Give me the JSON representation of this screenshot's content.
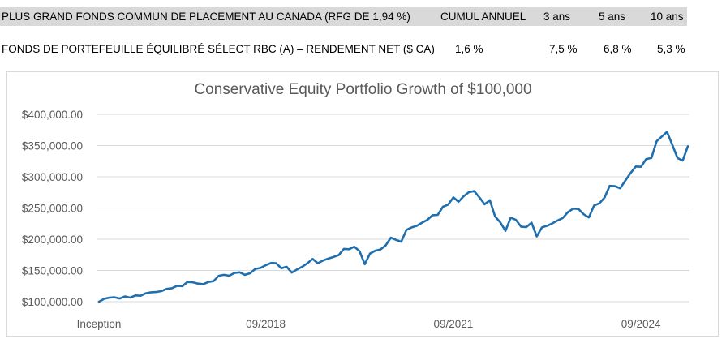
{
  "header": {
    "title": "PLUS GRAND FONDS COMMUN DE PLACEMENT AU CANADA (RFG DE 1,94 %)",
    "ytd_label": "CUMUL ANNUEL",
    "y3_label": "3 ans",
    "y5_label": "5 ans",
    "y10_label": "10 ans"
  },
  "fund": {
    "name": "FONDS DE PORTEFEUILLE ÉQUILIBRÉ SÉLECT RBC (A) – RENDEMENT NET ($ CA)",
    "ytd": "1,6 %",
    "y3": "7,5 %",
    "y5": "6,8 %",
    "y10": "5,3 %"
  },
  "chart_data": {
    "type": "line",
    "title": "Conservative Equity Portfolio Growth of $100,000",
    "xlabel": "",
    "ylabel": "",
    "ylim": [
      100000,
      400000
    ],
    "yticks": [
      "$100,000.00",
      "$150,000.00",
      "$200,000.00",
      "$250,000.00",
      "$300,000.00",
      "$350,000.00",
      "$400,000.00"
    ],
    "xticks": [
      {
        "index": 0,
        "label": "Inception"
      },
      {
        "index": 32,
        "label": "09/2018"
      },
      {
        "index": 68,
        "label": "09/2021"
      },
      {
        "index": 104,
        "label": "09/2024"
      }
    ],
    "grid": true,
    "color": "#1f6fae",
    "series": [
      {
        "values": [
          100000,
          104500,
          106500,
          107000,
          105000,
          108500,
          106500,
          110000,
          109500,
          113500,
          115000,
          115500,
          117000,
          120500,
          121500,
          125500,
          125000,
          131500,
          131000,
          129000,
          128000,
          131500,
          133000,
          141500,
          143000,
          141500,
          146000,
          147000,
          143000,
          145500,
          152500,
          154000,
          158500,
          162000,
          161500,
          153500,
          156000,
          146500,
          151500,
          156000,
          161500,
          168500,
          161500,
          166000,
          169000,
          171500,
          174500,
          184500,
          184000,
          188000,
          181000,
          160000,
          177000,
          181500,
          183500,
          190000,
          202500,
          199000,
          196000,
          215000,
          219000,
          221500,
          226500,
          231000,
          238500,
          239000,
          252000,
          255500,
          267000,
          260000,
          269000,
          275500,
          277000,
          267000,
          256000,
          262500,
          236500,
          227000,
          213500,
          234500,
          231000,
          220000,
          219500,
          226500,
          204500,
          219000,
          221500,
          225500,
          230000,
          234000,
          243500,
          249000,
          248500,
          240000,
          235000,
          254000,
          257500,
          266500,
          285500,
          285000,
          281500,
          294000,
          306000,
          316500,
          316000,
          328500,
          330000,
          357000,
          364500,
          372000,
          351500,
          330000,
          326000,
          349000
        ]
      }
    ]
  }
}
